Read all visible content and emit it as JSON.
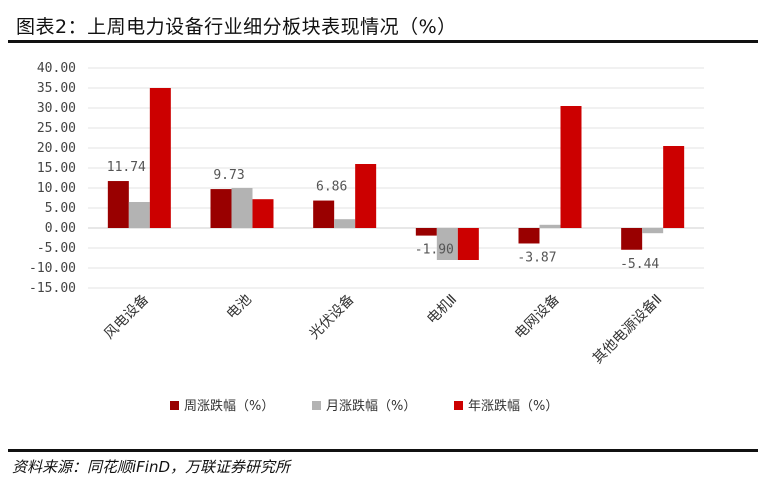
{
  "header": {
    "title": "图表2：上周电力设备行业细分板块表现情况（%）"
  },
  "source": "资料来源：同花顺iFinD，万联证券研究所",
  "colors": {
    "weekly": "#990000",
    "monthly": "#b3b3b3",
    "yearly": "#cc0000"
  },
  "chart_data": {
    "type": "bar",
    "categories": [
      "风电设备",
      "电池",
      "光伏设备",
      "电机Ⅱ",
      "电网设备",
      "其他电源设备Ⅱ"
    ],
    "series": [
      {
        "name": "周涨跌幅（%）",
        "values": [
          11.74,
          9.73,
          6.86,
          -1.9,
          -3.87,
          -5.44
        ]
      },
      {
        "name": "月涨跌幅（%）",
        "values": [
          6.5,
          10.0,
          2.2,
          -8.0,
          0.8,
          -1.3
        ]
      },
      {
        "name": "年涨跌幅（%）",
        "values": [
          35.0,
          7.2,
          16.0,
          -8.0,
          30.5,
          20.5
        ]
      }
    ],
    "data_labels": [
      "11.74",
      "9.73",
      "6.86",
      "-1.90",
      "-3.87",
      "-5.44"
    ],
    "yticks": [
      "40.00",
      "35.00",
      "30.00",
      "25.00",
      "20.00",
      "15.00",
      "10.00",
      "5.00",
      "0.00",
      "-5.00",
      "-10.00",
      "-15.00"
    ],
    "ylim": [
      -15,
      40
    ],
    "grid": true,
    "legend_position": "bottom"
  }
}
